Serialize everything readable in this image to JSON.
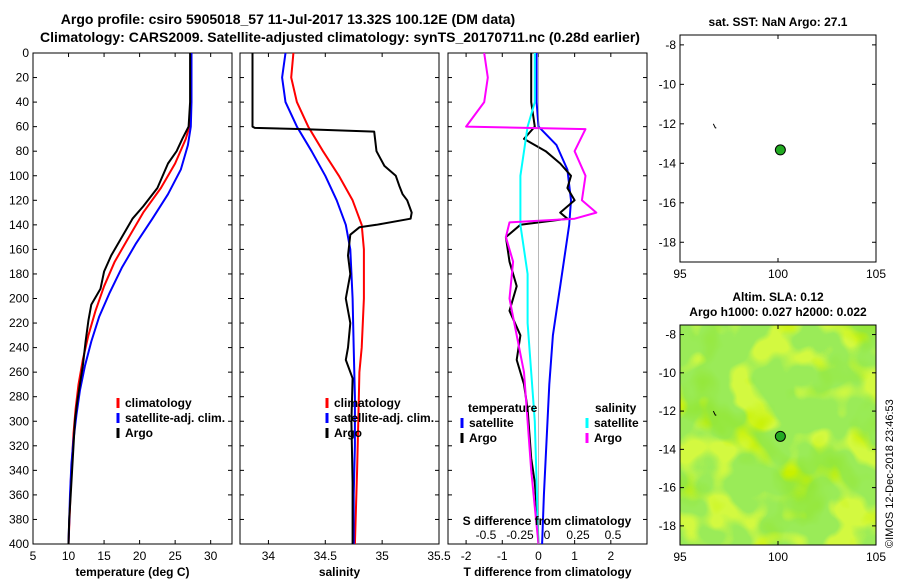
{
  "titles": {
    "line1": "Argo profile: csiro 5905018_57 11-Jul-2017 13.32S 100.12E (DM data)",
    "line2": "Climatology: CARS2009. Satellite-adjusted climatology: synTS_20170711.nc (0.28d earlier)"
  },
  "watermark": "©IMOS 12-Dec-2018 23:46:53",
  "chart_data": [
    {
      "id": "temperature",
      "type": "line",
      "xlabel": "temperature (deg C)",
      "ylabel": "",
      "xlim": [
        5,
        33
      ],
      "ylim": [
        400,
        0
      ],
      "xticks": [
        5,
        10,
        15,
        20,
        25,
        30
      ],
      "yticks": [
        0,
        20,
        40,
        60,
        80,
        100,
        120,
        140,
        160,
        180,
        200,
        220,
        240,
        260,
        280,
        300,
        320,
        340,
        360,
        380,
        400
      ],
      "legend": [
        "climatology",
        "satellite-adj. clim.",
        "Argo"
      ],
      "series": [
        {
          "name": "climatology",
          "color": "#ff0000",
          "x": [
            27.3,
            27.2,
            27.0,
            26.5,
            25.0,
            23.0,
            20.5,
            18.5,
            16.5,
            15.0,
            13.8,
            12.8,
            12.0,
            11.4,
            11.0,
            10.7,
            10.5,
            10.3,
            10.2,
            10.0
          ],
          "depth": [
            0,
            40,
            60,
            70,
            90,
            110,
            130,
            150,
            170,
            190,
            210,
            230,
            250,
            270,
            290,
            310,
            330,
            350,
            370,
            400
          ]
        },
        {
          "name": "satellite-adj. clim.",
          "color": "#0000ff",
          "x": [
            27.3,
            27.3,
            27.2,
            26.8,
            25.8,
            24.0,
            21.8,
            19.5,
            17.5,
            15.8,
            14.3,
            13.2,
            12.3,
            11.6,
            11.1,
            10.7,
            10.4,
            10.2,
            10.0
          ],
          "depth": [
            0,
            40,
            60,
            75,
            95,
            115,
            135,
            155,
            175,
            195,
            215,
            235,
            255,
            275,
            295,
            315,
            335,
            360,
            400
          ]
        },
        {
          "name": "Argo",
          "color": "#000000",
          "x": [
            27.1,
            27.1,
            26.9,
            26.0,
            25.2,
            24.0,
            22.5,
            20.5,
            19.0,
            18.0,
            17.3,
            16.0,
            15.0,
            14.5,
            13.2,
            12.8,
            12.4,
            12.0,
            11.6,
            11.2,
            10.9,
            10.7,
            10.5,
            10.3,
            10.1,
            10.0
          ],
          "depth": [
            0,
            40,
            60,
            70,
            80,
            90,
            110,
            125,
            135,
            145,
            152,
            165,
            178,
            192,
            205,
            218,
            235,
            255,
            270,
            285,
            300,
            320,
            340,
            360,
            380,
            400
          ]
        }
      ]
    },
    {
      "id": "salinity",
      "type": "line",
      "xlabel": "salinity",
      "ylabel": "",
      "xlim": [
        33.75,
        35.5
      ],
      "ylim": [
        400,
        0
      ],
      "xticks": [
        34,
        34.5,
        35,
        35.5
      ],
      "xticklabels": [
        "34",
        "34.5",
        "35",
        "35.5"
      ],
      "legend": [
        "climatology",
        "satellite-adj. clim.",
        "Argo"
      ],
      "series": [
        {
          "name": "climatology",
          "color": "#ff0000",
          "x": [
            34.22,
            34.2,
            34.25,
            34.35,
            34.48,
            34.62,
            34.74,
            34.82,
            34.84,
            34.84,
            34.84,
            34.83,
            34.82,
            34.8,
            34.79,
            34.78,
            34.77,
            34.76
          ],
          "depth": [
            0,
            20,
            40,
            60,
            80,
            100,
            120,
            140,
            160,
            180,
            200,
            220,
            240,
            260,
            300,
            340,
            370,
            400
          ]
        },
        {
          "name": "satellite-adj. clim.",
          "color": "#0000ff",
          "x": [
            34.15,
            34.12,
            34.15,
            34.25,
            34.38,
            34.5,
            34.6,
            34.68,
            34.72,
            34.74,
            34.75,
            34.76,
            34.76,
            34.75,
            34.75
          ],
          "depth": [
            0,
            20,
            40,
            60,
            80,
            100,
            120,
            140,
            160,
            200,
            240,
            280,
            320,
            360,
            400
          ]
        },
        {
          "name": "Argo",
          "color": "#000000",
          "x": [
            33.86,
            33.86,
            33.88,
            34.3,
            34.93,
            34.95,
            35.02,
            35.12,
            35.15,
            35.18,
            35.22,
            35.26,
            35.25,
            34.95,
            34.8,
            34.72,
            34.7,
            34.72,
            34.68,
            34.72,
            34.7,
            34.68,
            34.74,
            34.73,
            34.74,
            34.74
          ],
          "depth": [
            0,
            60,
            61,
            62,
            64,
            80,
            92,
            100,
            108,
            115,
            120,
            130,
            135,
            140,
            142,
            148,
            165,
            180,
            200,
            220,
            240,
            250,
            265,
            300,
            350,
            400
          ]
        }
      ]
    },
    {
      "id": "difference",
      "type": "line",
      "xlabel": "T difference from climatology",
      "xlabel_top": "S difference from climatology",
      "xlim": [
        -2.5,
        3
      ],
      "ylim": [
        400,
        0
      ],
      "xticks": [
        -2,
        -1,
        0,
        1,
        2
      ],
      "xticklabels": [
        "-2",
        "-1",
        "0",
        "1",
        "2"
      ],
      "top_ticklabels": [
        "-0.5",
        "-0.25",
        "0",
        "0.25",
        "0.5"
      ],
      "legend_temperature_title": "temperature",
      "legend_salinity_title": "salinity",
      "legend_temperature": [
        "satellite",
        "Argo"
      ],
      "legend_salinity": [
        "satellite",
        "Argo"
      ],
      "series": [
        {
          "name": "T satellite",
          "color": "#0000ff",
          "x": [
            -0.05,
            -0.05,
            0.0,
            0.5,
            0.8,
            0.9,
            0.85,
            0.8,
            0.7,
            0.6,
            0.5,
            0.4,
            0.35,
            0.3,
            0.25,
            0.2,
            0.15,
            0.1
          ],
          "depth": [
            0,
            40,
            60,
            75,
            95,
            120,
            140,
            150,
            170,
            190,
            210,
            230,
            250,
            270,
            300,
            330,
            360,
            400
          ]
        },
        {
          "name": "T Argo",
          "color": "#000000",
          "x": [
            -0.2,
            -0.2,
            -0.1,
            -0.4,
            0.2,
            0.6,
            0.9,
            0.8,
            1.0,
            0.6,
            0.8,
            -0.5,
            -0.9,
            -0.8,
            -0.6,
            -0.8,
            -0.5,
            -0.6,
            -0.4,
            -0.3,
            -0.25,
            -0.2,
            -0.1,
            -0.05,
            0.0
          ],
          "depth": [
            0,
            40,
            60,
            70,
            80,
            90,
            100,
            110,
            120,
            130,
            135,
            140,
            150,
            170,
            190,
            210,
            230,
            250,
            270,
            290,
            310,
            330,
            350,
            370,
            400
          ]
        },
        {
          "name": "S satellite",
          "color": "#00ffff",
          "x": [
            -0.1,
            -0.1,
            -0.3,
            -0.5,
            -0.5,
            -0.3,
            -0.3,
            -0.2,
            -0.1,
            -0.05,
            0.0
          ],
          "depth": [
            0,
            40,
            60,
            100,
            140,
            180,
            220,
            260,
            300,
            350,
            400
          ]
        },
        {
          "name": "S Argo",
          "color": "#ff00ff",
          "x": [
            -1.5,
            -1.4,
            -1.5,
            -2.0,
            1.3,
            1.0,
            1.3,
            1.2,
            1.6,
            1.0,
            -0.8,
            -0.9,
            -0.7,
            -0.8,
            -0.6,
            -0.4,
            -0.3,
            -0.2,
            -0.1,
            0.0
          ],
          "depth": [
            0,
            20,
            40,
            60,
            62,
            80,
            100,
            120,
            130,
            135,
            138,
            150,
            170,
            200,
            230,
            260,
            300,
            340,
            370,
            400
          ]
        }
      ]
    },
    {
      "id": "map_sst",
      "type": "scatter",
      "title": "sat. SST: NaN Argo: 27.1",
      "xlim": [
        95,
        105
      ],
      "ylim": [
        -19,
        -7.5
      ],
      "xticks": [
        95,
        100,
        105
      ],
      "yticks": [
        -8,
        -10,
        -12,
        -14,
        -16,
        -18
      ],
      "points": [
        {
          "x": 100.12,
          "y": -13.32,
          "color": "#22aa22"
        }
      ]
    },
    {
      "id": "map_sla",
      "type": "heatmap",
      "title1": "Altim. SLA: 0.12",
      "title2": "Argo h1000: 0.027 h2000: 0.022",
      "xlim": [
        95,
        105
      ],
      "ylim": [
        -19,
        -7.5
      ],
      "xticks": [
        95,
        100,
        105
      ],
      "yticks": [
        -8,
        -10,
        -12,
        -14,
        -16,
        -18
      ],
      "points": [
        {
          "x": 100.12,
          "y": -13.32,
          "color": "#22aa22"
        }
      ]
    }
  ]
}
